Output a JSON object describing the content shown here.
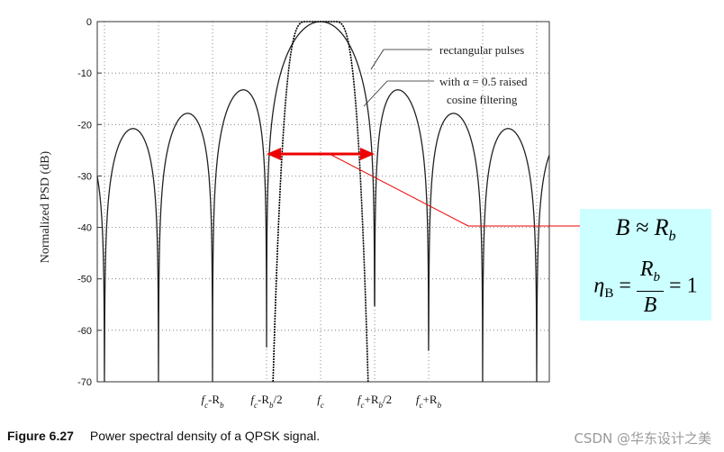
{
  "chart_data": {
    "type": "line",
    "title": "",
    "ylabel": "Normalized PSD (dB)",
    "xlabel": "",
    "ylim": [
      -70,
      0
    ],
    "yticks": [
      "0",
      "-10",
      "-20",
      "-30",
      "-40",
      "-50",
      "-60",
      "-70"
    ],
    "xticks": [
      "fc-Rb",
      "fc-Rb/2",
      "fc",
      "fc+Rb/2",
      "fc+Rb"
    ],
    "x_in_units_of_Rb_offset_from_fc": [
      -1,
      -0.5,
      0,
      0.5,
      1
    ],
    "grid": true,
    "series": [
      {
        "name": "rectangular pulses",
        "shape": "sinc^2 main lobe and side lobes",
        "main_lobe_peak_db": 0,
        "first_null_offset_Rb": 0.5,
        "side_lobe_peaks_db": [
          -13.5,
          -18,
          -21
        ]
      },
      {
        "name": "with α = 0.5 raised cosine filtering",
        "main_lobe_peak_db": 0,
        "edge_offset_Rb": 0.375
      }
    ],
    "annotations": {
      "legend_rect": "rectangular pulses",
      "legend_rc_line1": "with α = 0.5 raised",
      "legend_rc_line2": "cosine filtering"
    },
    "arrow_color": "#ee0000"
  },
  "formula": {
    "line1": "B ≈ R",
    "line1_sub": "b",
    "line2_lhs": "η",
    "line2_lhs_sub": "B",
    "line2_eq": "=",
    "line2_num": "R",
    "line2_num_sub": "b",
    "line2_den": "B",
    "line2_rhs": "= 1",
    "background": "#ccffff"
  },
  "caption": {
    "label": "Figure 6.27",
    "text": "Power spectral density of a QPSK signal."
  },
  "watermark": "CSDN @华东设计之美"
}
